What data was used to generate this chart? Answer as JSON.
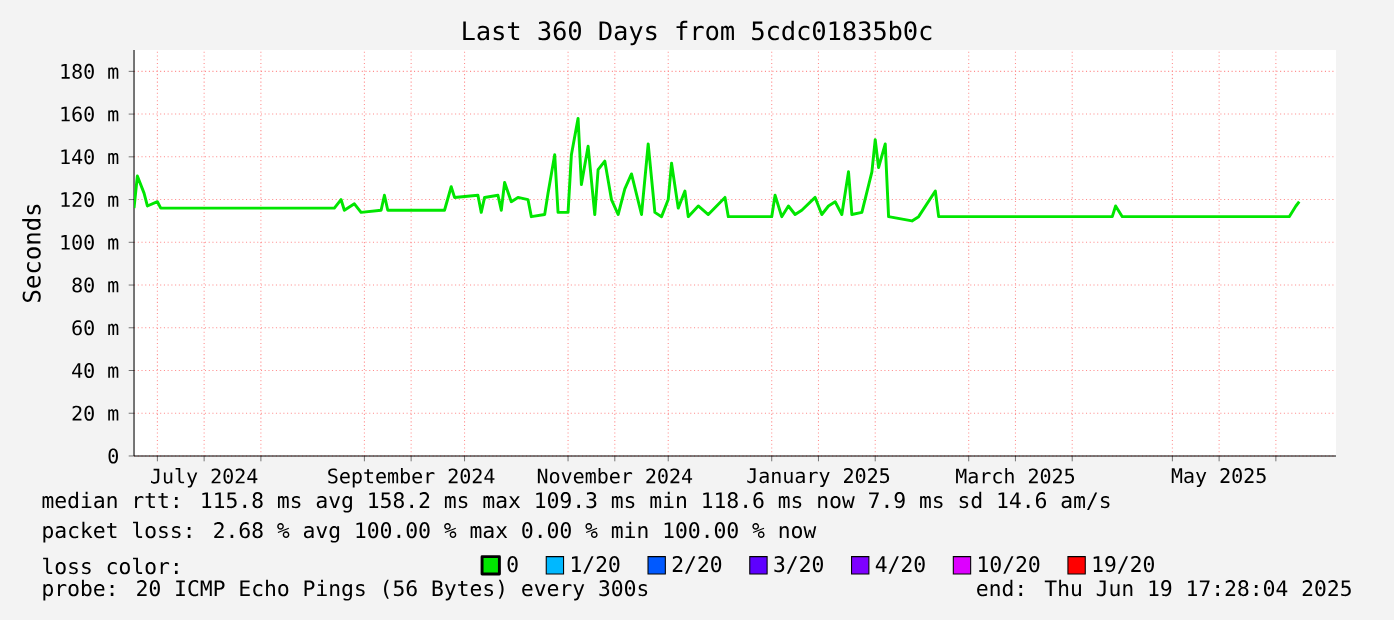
{
  "chart_data": {
    "type": "line",
    "title": "Last 360 Days from 5cdc01835b0c",
    "ylabel": "Seconds",
    "xlim": [
      "2024-06-24",
      "2025-06-19"
    ],
    "xticks": [
      {
        "value": "2024-07-01",
        "label": null
      },
      {
        "value": "2024-07-15",
        "label": "July 2024"
      },
      {
        "value": "2024-08-01",
        "label": null
      },
      {
        "value": "2024-09-01",
        "label": null
      },
      {
        "value": "2024-09-15",
        "label": "September 2024"
      },
      {
        "value": "2024-10-01",
        "label": null
      },
      {
        "value": "2024-11-01",
        "label": null
      },
      {
        "value": "2024-11-15",
        "label": "November 2024"
      },
      {
        "value": "2024-12-01",
        "label": null
      },
      {
        "value": "2025-01-01",
        "label": null
      },
      {
        "value": "2025-01-15",
        "label": "January 2025"
      },
      {
        "value": "2025-02-01",
        "label": null
      },
      {
        "value": "2025-03-01",
        "label": null
      },
      {
        "value": "2025-03-15",
        "label": "March 2025"
      },
      {
        "value": "2025-04-01",
        "label": null
      },
      {
        "value": "2025-05-01",
        "label": null
      },
      {
        "value": "2025-05-15",
        "label": "May 2025"
      },
      {
        "value": "2025-06-01",
        "label": null
      }
    ],
    "ylim": [
      0,
      190
    ],
    "yticks": [
      0,
      {
        "value": 20,
        "label": "20 m"
      },
      {
        "value": 40,
        "label": "40 m"
      },
      {
        "value": 60,
        "label": "60 m"
      },
      {
        "value": 80,
        "label": "80 m"
      },
      {
        "value": 100,
        "label": "100 m"
      },
      {
        "value": 120,
        "label": "120 m"
      },
      {
        "value": 140,
        "label": "140 m"
      },
      {
        "value": 160,
        "label": "160 m"
      },
      {
        "value": 180,
        "label": "180 m"
      }
    ],
    "grid": true,
    "marker": "none",
    "line_style": "solid",
    "legend": "bottom",
    "legend_title": "loss color:",
    "x": [
      "2024-06-24",
      "2024-06-25",
      "2024-06-27",
      "2024-06-28",
      "2024-07-01",
      "2024-07-02",
      "2024-08-23",
      "2024-08-25",
      "2024-08-26",
      "2024-08-29",
      "2024-08-31",
      "2024-09-06",
      "2024-09-07",
      "2024-09-08",
      "2024-09-25",
      "2024-09-27",
      "2024-09-28",
      "2024-10-05",
      "2024-10-06",
      "2024-10-07",
      "2024-10-11",
      "2024-10-12",
      "2024-10-13",
      "2024-10-15",
      "2024-10-17",
      "2024-10-20",
      "2024-10-21",
      "2024-10-25",
      "2024-10-26",
      "2024-10-28",
      "2024-10-29",
      "2024-11-01",
      "2024-11-02",
      "2024-11-04",
      "2024-11-05",
      "2024-11-07",
      "2024-11-09",
      "2024-11-10",
      "2024-11-12",
      "2024-11-14",
      "2024-11-16",
      "2024-11-18",
      "2024-11-20",
      "2024-11-23",
      "2024-11-25",
      "2024-11-27",
      "2024-11-29",
      "2024-12-01",
      "2024-12-02",
      "2024-12-04",
      "2024-12-06",
      "2024-12-07",
      "2024-12-10",
      "2024-12-13",
      "2024-12-18",
      "2024-12-19",
      "2025-01-01",
      "2025-01-02",
      "2025-01-04",
      "2025-01-06",
      "2025-01-08",
      "2025-01-10",
      "2025-01-14",
      "2025-01-16",
      "2025-01-18",
      "2025-01-20",
      "2025-01-22",
      "2025-01-24",
      "2025-01-25",
      "2025-01-28",
      "2025-01-31",
      "2025-02-01",
      "2025-02-02",
      "2025-02-04",
      "2025-02-05",
      "2025-02-12",
      "2025-02-14",
      "2025-02-19",
      "2025-02-20",
      "2025-04-13",
      "2025-04-14",
      "2025-04-16",
      "2025-06-05",
      "2025-06-07",
      "2025-06-08"
    ],
    "series": [
      {
        "name": "0",
        "color": "#00e600",
        "values": [
          116,
          131,
          123,
          117,
          119,
          116,
          116,
          120,
          115,
          118,
          114,
          115,
          122,
          115,
          115,
          126,
          121,
          122,
          114,
          121,
          122,
          115,
          128,
          119,
          121,
          120,
          112,
          113,
          123,
          141,
          114,
          114,
          141,
          158,
          127,
          145,
          113,
          134,
          138,
          120,
          113,
          125,
          132,
          113,
          146,
          114,
          112,
          120,
          137,
          116,
          124,
          112,
          117,
          113,
          121,
          112,
          112,
          122,
          112,
          117,
          113,
          115,
          121,
          113,
          117,
          119,
          113,
          133,
          113,
          114,
          133,
          148,
          135,
          146,
          112,
          110,
          112,
          124,
          112,
          112,
          117,
          112,
          112,
          117,
          119
        ]
      },
      {
        "name": "1/20",
        "color": "#00b8ff",
        "values": [
          null,
          null,
          null,
          null,
          null,
          null,
          null,
          null,
          null,
          null,
          null,
          null,
          null,
          null,
          null,
          null,
          null,
          null,
          null,
          null,
          null,
          null,
          null,
          null,
          null,
          null,
          null,
          null,
          null,
          null,
          null,
          null,
          null,
          null,
          null,
          null,
          null,
          null,
          null,
          null,
          null,
          null,
          null,
          null,
          null,
          null,
          null,
          null,
          null,
          null,
          null,
          null,
          null,
          null,
          null,
          null,
          null,
          null,
          null,
          null,
          null,
          null,
          null,
          null,
          null,
          null,
          null,
          null,
          null,
          null,
          null,
          null,
          null,
          null,
          null,
          null,
          null,
          null,
          null,
          null,
          null,
          null,
          null,
          null,
          null
        ]
      },
      {
        "name": "2/20",
        "color": "#0059ff",
        "values": [
          null,
          null,
          null,
          null,
          null,
          null,
          null,
          null,
          null,
          null,
          null,
          null,
          null,
          null,
          null,
          null,
          null,
          null,
          null,
          null,
          null,
          null,
          null,
          null,
          null,
          null,
          null,
          null,
          null,
          null,
          null,
          null,
          null,
          null,
          null,
          null,
          null,
          null,
          null,
          null,
          null,
          null,
          null,
          null,
          null,
          null,
          null,
          null,
          null,
          null,
          null,
          null,
          null,
          null,
          null,
          null,
          null,
          null,
          null,
          null,
          null,
          null,
          null,
          null,
          null,
          null,
          null,
          null,
          null,
          null,
          null,
          null,
          null,
          null,
          null,
          null,
          null,
          null,
          null,
          null,
          null,
          null,
          null,
          null,
          null
        ]
      },
      {
        "name": "3/20",
        "color": "#5e00ff",
        "values": [
          null,
          null,
          null,
          null,
          null,
          null,
          null,
          null,
          null,
          null,
          null,
          null,
          null,
          null,
          null,
          null,
          null,
          null,
          null,
          null,
          null,
          null,
          null,
          null,
          null,
          null,
          null,
          null,
          null,
          null,
          null,
          null,
          null,
          null,
          null,
          null,
          null,
          null,
          null,
          null,
          null,
          null,
          null,
          null,
          null,
          null,
          null,
          null,
          null,
          null,
          null,
          null,
          null,
          null,
          null,
          null,
          null,
          null,
          null,
          null,
          null,
          null,
          null,
          null,
          null,
          null,
          null,
          null,
          null,
          null,
          null,
          null,
          null,
          null,
          null,
          null,
          null,
          null,
          null,
          null,
          null,
          null,
          null,
          null,
          null
        ]
      },
      {
        "name": "4/20",
        "color": "#7e00ff",
        "values": [
          null,
          null,
          null,
          null,
          null,
          null,
          null,
          null,
          null,
          null,
          null,
          null,
          null,
          null,
          null,
          null,
          null,
          null,
          null,
          null,
          null,
          null,
          null,
          null,
          null,
          null,
          null,
          null,
          null,
          null,
          null,
          null,
          null,
          null,
          null,
          null,
          null,
          null,
          null,
          null,
          null,
          null,
          null,
          null,
          null,
          null,
          null,
          null,
          null,
          null,
          null,
          null,
          null,
          null,
          null,
          null,
          null,
          null,
          null,
          null,
          null,
          null,
          null,
          null,
          null,
          null,
          null,
          null,
          null,
          null,
          null,
          null,
          null,
          null,
          null,
          null,
          null,
          null,
          null,
          null,
          null,
          null,
          null,
          null,
          null
        ]
      },
      {
        "name": "10/20",
        "color": "#dd00ff",
        "values": [
          null,
          null,
          null,
          null,
          null,
          null,
          null,
          null,
          null,
          null,
          null,
          null,
          null,
          null,
          null,
          null,
          null,
          null,
          null,
          null,
          null,
          null,
          null,
          null,
          null,
          null,
          null,
          null,
          null,
          null,
          null,
          null,
          null,
          null,
          null,
          null,
          null,
          null,
          null,
          null,
          null,
          null,
          null,
          null,
          null,
          null,
          null,
          null,
          null,
          null,
          null,
          null,
          null,
          null,
          null,
          null,
          null,
          null,
          null,
          null,
          null,
          null,
          null,
          null,
          null,
          null,
          null,
          null,
          null,
          null,
          null,
          null,
          null,
          null,
          null,
          null,
          null,
          null,
          null,
          null,
          null,
          null,
          null,
          null,
          null
        ]
      },
      {
        "name": "19/20",
        "color": "#ff0000",
        "values": [
          null,
          null,
          null,
          null,
          null,
          null,
          null,
          null,
          null,
          null,
          null,
          null,
          null,
          null,
          null,
          null,
          null,
          null,
          null,
          null,
          null,
          null,
          null,
          null,
          null,
          null,
          null,
          null,
          null,
          null,
          null,
          null,
          null,
          null,
          null,
          null,
          null,
          null,
          null,
          null,
          null,
          null,
          null,
          null,
          null,
          null,
          null,
          null,
          null,
          null,
          null,
          null,
          null,
          null,
          null,
          null,
          null,
          null,
          null,
          null,
          null,
          null,
          null,
          null,
          null,
          null,
          null,
          null,
          null,
          null,
          null,
          null,
          null,
          null,
          null,
          null,
          null,
          null,
          null,
          null,
          null,
          null,
          null,
          null,
          null
        ]
      }
    ],
    "annotations": [
      "median rtt: 115.8 ms avg 158.2 ms max 109.3 ms min 118.6 ms now 7.9 ms sd 14.6 am/s",
      "packet loss: 2.68 % avg 100.00 % max 0.00 % min 100.00 % now",
      "probe: 20 ICMP Echo Pings (56 Bytes) every 300s",
      "end: Thu Jun 19 17:28:04 2025"
    ]
  }
}
